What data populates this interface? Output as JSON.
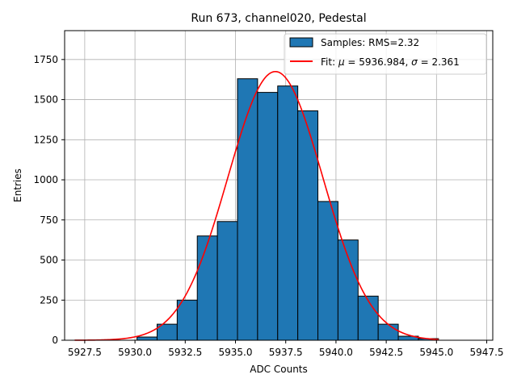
{
  "chart_data": {
    "type": "bar",
    "title": "Run 673, channel020, Pedestal",
    "xlabel": "ADC Counts",
    "ylabel": "Entries",
    "xlim": [
      5926.5,
      5947.8
    ],
    "ylim": [
      0,
      1930
    ],
    "xticks": [
      5927.5,
      5930.0,
      5932.5,
      5935.0,
      5937.5,
      5940.0,
      5942.5,
      5945.0,
      5947.5
    ],
    "xtick_labels": [
      "5927.5",
      "5930.0",
      "5932.5",
      "5935.0",
      "5937.5",
      "5940.0",
      "5942.5",
      "5945.0",
      "5947.5"
    ],
    "yticks": [
      0,
      250,
      500,
      750,
      1000,
      1250,
      1500,
      1750
    ],
    "ytick_labels": [
      "0",
      "250",
      "500",
      "750",
      "1000",
      "1250",
      "1500",
      "1750"
    ],
    "grid": true,
    "legend_position": "top-right",
    "bar_color": "#1f77b4",
    "fit_color": "#ff0000",
    "histogram": {
      "name": "Samples: RMS=2.32",
      "bins": [
        {
          "x0": 5930.1,
          "x1": 5931.1,
          "count": 20
        },
        {
          "x0": 5931.1,
          "x1": 5932.1,
          "count": 100
        },
        {
          "x0": 5932.1,
          "x1": 5933.1,
          "count": 250
        },
        {
          "x0": 5933.1,
          "x1": 5934.1,
          "count": 650
        },
        {
          "x0": 5934.1,
          "x1": 5935.1,
          "count": 740
        },
        {
          "x0": 5935.1,
          "x1": 5936.1,
          "count": 1630
        },
        {
          "x0": 5936.1,
          "x1": 5937.1,
          "count": 1545
        },
        {
          "x0": 5937.1,
          "x1": 5938.1,
          "count": 1585
        },
        {
          "x0": 5938.1,
          "x1": 5939.1,
          "count": 1430
        },
        {
          "x0": 5939.1,
          "x1": 5940.1,
          "count": 865
        },
        {
          "x0": 5940.1,
          "x1": 5941.1,
          "count": 625
        },
        {
          "x0": 5941.1,
          "x1": 5942.1,
          "count": 275
        },
        {
          "x0": 5942.1,
          "x1": 5943.1,
          "count": 100
        },
        {
          "x0": 5943.1,
          "x1": 5944.1,
          "count": 25
        },
        {
          "x0": 5944.1,
          "x1": 5945.1,
          "count": 10
        }
      ]
    },
    "fit": {
      "name_prefix": "Fit: ",
      "mu_symbol": "μ",
      "mu_text": " = 5936.984, ",
      "sigma_symbol": "σ",
      "sigma_text": " = 2.361",
      "mu": 5936.984,
      "sigma": 2.361,
      "amplitude": 1675,
      "x_range": [
        5927.0,
        5945.1
      ]
    }
  }
}
